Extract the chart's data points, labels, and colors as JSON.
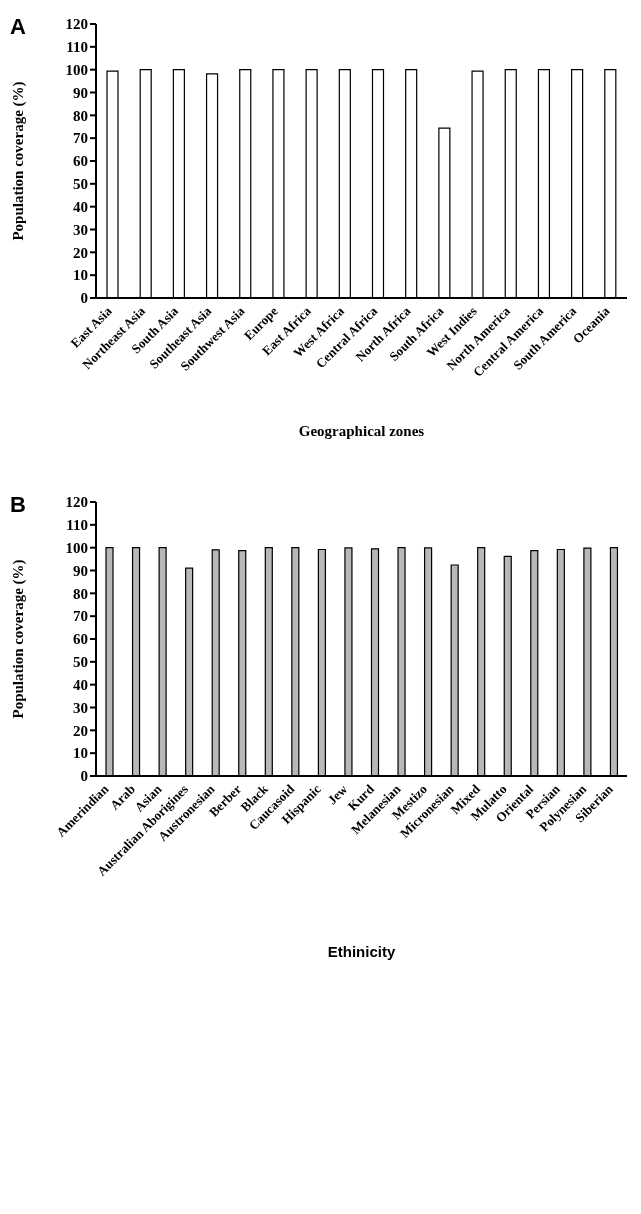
{
  "chart_data": [
    {
      "type": "bar",
      "annotations": [
        "A"
      ],
      "xlabel": "Geographical zones",
      "ylabel": "Population coverage (%)",
      "categories": [
        "East Asia",
        "Northeast Asia",
        "South Asia",
        "Southeast Asia",
        "Southwest Asia",
        "Europe",
        "East Africa",
        "West Africa",
        "Central Africa",
        "North Africa",
        "South Africa",
        "West Indies",
        "North America",
        "Central America",
        "South America",
        "Oceania"
      ],
      "values": [
        99.4,
        100,
        100,
        98.2,
        100,
        100,
        100,
        100,
        100,
        100,
        74.4,
        99.4,
        100,
        100,
        100,
        100
      ],
      "color": "#ffffff",
      "ylim": [
        0,
        120
      ],
      "yticks": [
        0,
        10,
        20,
        30,
        40,
        50,
        60,
        70,
        80,
        90,
        100,
        110,
        120
      ],
      "grid": false,
      "legend": false
    },
    {
      "type": "bar",
      "annotations": [
        "B"
      ],
      "xlabel": "Ethinicity",
      "ylabel": "Population coverage (%)",
      "categories": [
        "Amerindian",
        "Arab",
        "Asian",
        "Australian Aborigines",
        "Austronesian",
        "Berber",
        "Black",
        "Caucasoid",
        "Hispanic",
        "Jew",
        "Kurd",
        "Melanesian",
        "Mestizo",
        "Micronesian",
        "Mixed",
        "Mulatto",
        "Oriental",
        "Persian",
        "Polynesian",
        "Siberian"
      ],
      "values": [
        100,
        100,
        100,
        91,
        99,
        98.7,
        100,
        100,
        99.2,
        99.9,
        99.5,
        100,
        99.9,
        92.4,
        100,
        96.2,
        98.7,
        99.2,
        99.8,
        100
      ],
      "color": "#b8b8b8",
      "ylim": [
        0,
        120
      ],
      "yticks": [
        0,
        10,
        20,
        30,
        40,
        50,
        60,
        70,
        80,
        90,
        100,
        110,
        120
      ],
      "grid": false,
      "legend": false
    }
  ]
}
